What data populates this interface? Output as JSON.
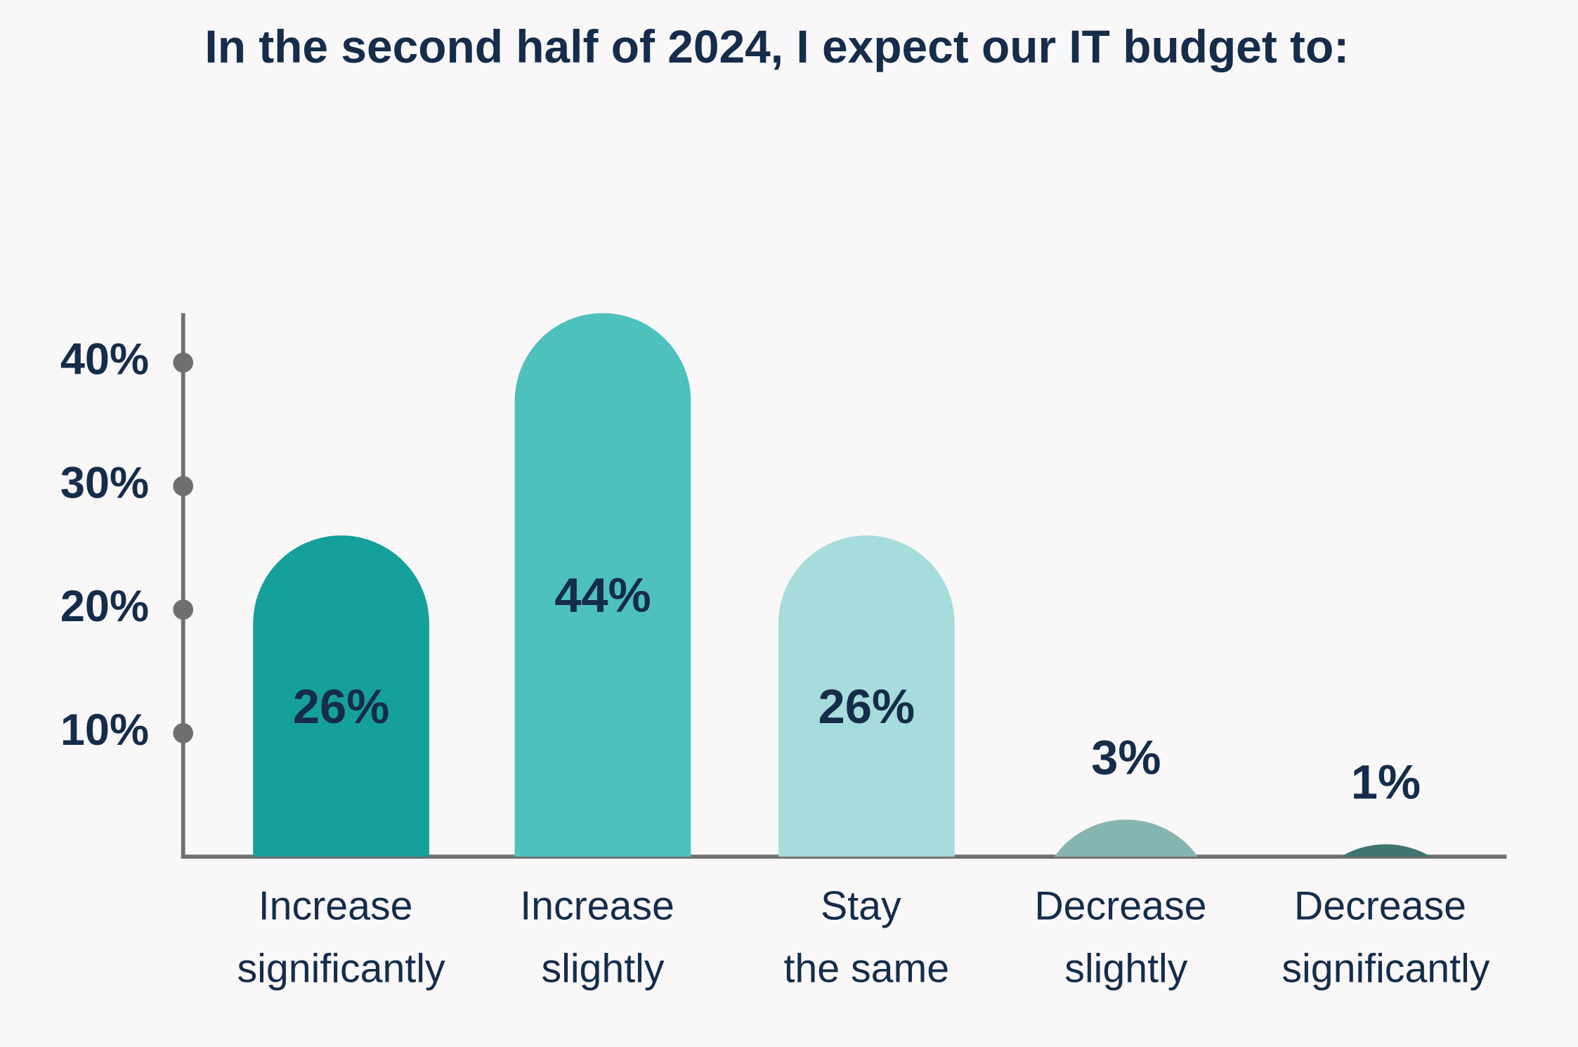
{
  "chart_data": {
    "type": "bar",
    "title": "In the second half of 2024, I expect our IT budget to:",
    "categories": [
      "Increase significantly",
      "Increase slightly",
      "Stay the same",
      "Decrease slightly",
      "Decrease significantly"
    ],
    "values": [
      26,
      44,
      26,
      3,
      1
    ],
    "value_labels": [
      "26%",
      "44%",
      "26%",
      "3%",
      "1%"
    ],
    "colors": [
      "#16a09c",
      "#4ec1bd",
      "#a6dcdb",
      "#86b5b1",
      "#3f7470"
    ],
    "ylim": [
      0,
      44
    ],
    "yticks": [
      {
        "value": 10,
        "label": "10%"
      },
      {
        "value": 20,
        "label": "20%"
      },
      {
        "value": 30,
        "label": "30%"
      },
      {
        "value": 40,
        "label": "40%"
      }
    ]
  }
}
